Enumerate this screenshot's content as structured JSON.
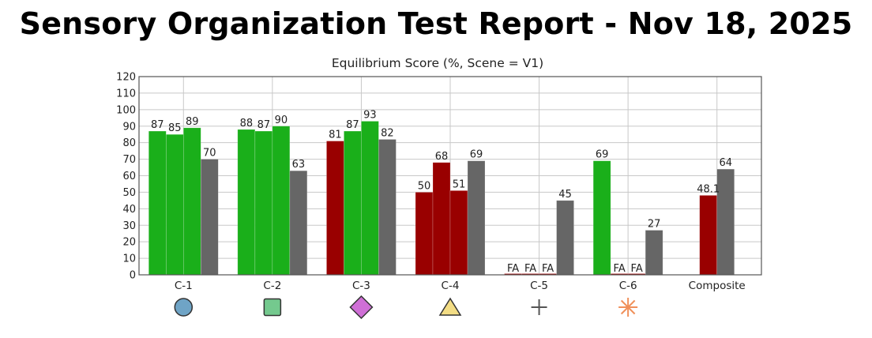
{
  "report": {
    "title": "Sensory Organization Test Report - Nov 18, 2025"
  },
  "colors": {
    "pass": "#1aaf1a",
    "fail": "#990000",
    "reference": "#666666",
    "grid": "#c8c8c8",
    "frame": "#555555"
  },
  "chart_data": {
    "type": "bar",
    "title": "Equilibrium Score (%, Scene = V1)",
    "xlabel": "",
    "ylabel": "",
    "ylim": [
      0,
      120
    ],
    "yticks": [
      0,
      10,
      20,
      30,
      40,
      50,
      60,
      70,
      80,
      90,
      100,
      110,
      120
    ],
    "grid": true,
    "categories": [
      "C-1",
      "C-2",
      "C-3",
      "C-4",
      "C-5",
      "C-6",
      "Composite"
    ],
    "groups": [
      {
        "category": "C-1",
        "bars": [
          {
            "value": 87,
            "label": "87",
            "status": "pass"
          },
          {
            "value": 85,
            "label": "85",
            "status": "pass"
          },
          {
            "value": 89,
            "label": "89",
            "status": "pass"
          },
          {
            "value": 70,
            "label": "70",
            "status": "reference"
          }
        ]
      },
      {
        "category": "C-2",
        "bars": [
          {
            "value": 88,
            "label": "88",
            "status": "pass"
          },
          {
            "value": 87,
            "label": "87",
            "status": "pass"
          },
          {
            "value": 90,
            "label": "90",
            "status": "pass"
          },
          {
            "value": 63,
            "label": "63",
            "status": "reference"
          }
        ]
      },
      {
        "category": "C-3",
        "bars": [
          {
            "value": 81,
            "label": "81",
            "status": "fail"
          },
          {
            "value": 87,
            "label": "87",
            "status": "pass"
          },
          {
            "value": 93,
            "label": "93",
            "status": "pass"
          },
          {
            "value": 82,
            "label": "82",
            "status": "reference"
          }
        ]
      },
      {
        "category": "C-4",
        "bars": [
          {
            "value": 50,
            "label": "50",
            "status": "fail"
          },
          {
            "value": 68,
            "label": "68",
            "status": "fail"
          },
          {
            "value": 51,
            "label": "51",
            "status": "fail"
          },
          {
            "value": 69,
            "label": "69",
            "status": "reference"
          }
        ]
      },
      {
        "category": "C-5",
        "bars": [
          {
            "value": 0,
            "label": "FA",
            "status": "fail"
          },
          {
            "value": 0,
            "label": "FA",
            "status": "fail"
          },
          {
            "value": 0,
            "label": "FA",
            "status": "fail"
          },
          {
            "value": 45,
            "label": "45",
            "status": "reference"
          }
        ]
      },
      {
        "category": "C-6",
        "bars": [
          {
            "value": 69,
            "label": "69",
            "status": "pass"
          },
          {
            "value": 0,
            "label": "FA",
            "status": "fail"
          },
          {
            "value": 0,
            "label": "FA",
            "status": "fail"
          },
          {
            "value": 27,
            "label": "27",
            "status": "reference"
          }
        ]
      },
      {
        "category": "Composite",
        "bars": [
          {
            "value": 48.1,
            "label": "48.1",
            "status": "fail"
          },
          {
            "value": 64,
            "label": "64",
            "status": "reference"
          }
        ]
      }
    ],
    "condition_icons": [
      {
        "category": "C-1",
        "icon": "circle-icon",
        "fill": "#6fa4c6"
      },
      {
        "category": "C-2",
        "icon": "square-icon",
        "fill": "#74c98e"
      },
      {
        "category": "C-3",
        "icon": "diamond-icon",
        "fill": "#cf6fd6"
      },
      {
        "category": "C-4",
        "icon": "triangle-icon",
        "fill": "#f3dd85"
      },
      {
        "category": "C-5",
        "icon": "plus-icon",
        "fill": "#555555"
      },
      {
        "category": "C-6",
        "icon": "asterisk-icon",
        "fill": "#f0905a"
      }
    ]
  }
}
